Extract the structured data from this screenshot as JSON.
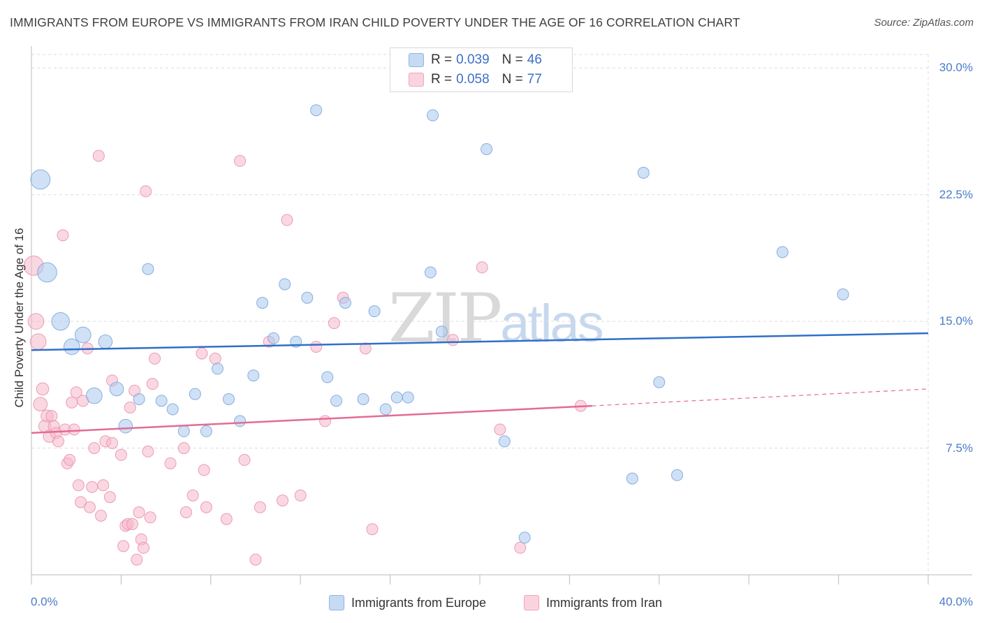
{
  "title": "IMMIGRANTS FROM EUROPE VS IMMIGRANTS FROM IRAN CHILD POVERTY UNDER THE AGE OF 16 CORRELATION CHART",
  "source": "Source: ZipAtlas.com",
  "watermark": {
    "zip": "ZIP",
    "atlas": "atlas"
  },
  "legend_box": {
    "rows": [
      {
        "r_label": "R =",
        "r_value": "0.039",
        "n_label": "N =",
        "n_value": "46",
        "color": "#a9c8ee"
      },
      {
        "r_label": "R =",
        "r_value": "0.058",
        "n_label": "N =",
        "n_value": "77",
        "color": "#f5b8cb"
      }
    ]
  },
  "bottom_legend": {
    "europe": "Immigrants from Europe",
    "iran": "Immigrants from Iran"
  },
  "chart_data": {
    "type": "scatter",
    "title": "IMMIGRANTS FROM EUROPE VS IMMIGRANTS FROM IRAN CHILD POVERTY UNDER THE AGE OF 16 CORRELATION CHART",
    "xlabel": "",
    "ylabel": "Child Poverty Under the Age of 16",
    "xlim": [
      0,
      40
    ],
    "ylim": [
      0,
      30.8
    ],
    "x_tick_labels": [
      "0.0%",
      "40.0%"
    ],
    "y_ticks": [
      7.5,
      15.0,
      22.5,
      30.0
    ],
    "y_tick_labels": [
      "7.5%",
      "15.0%",
      "22.5%",
      "30.0%"
    ],
    "grid": true,
    "colors": {
      "europe": "#a9c8ee",
      "europe_line": "#2f6fc9",
      "iran": "#f5b8cb",
      "iran_line": "#e46b94"
    },
    "series": [
      {
        "name": "Immigrants from Europe",
        "r": 0.039,
        "n": 46,
        "trend": {
          "x0": 0,
          "y0": 13.3,
          "x1": 40,
          "y1": 14.3
        },
        "points": [
          {
            "x": 0.4,
            "y": 23.4,
            "s": 3
          },
          {
            "x": 0.7,
            "y": 17.9,
            "s": 3
          },
          {
            "x": 1.3,
            "y": 15.0,
            "s": 2.5
          },
          {
            "x": 1.8,
            "y": 13.5,
            "s": 2
          },
          {
            "x": 2.3,
            "y": 14.2,
            "s": 2
          },
          {
            "x": 2.8,
            "y": 10.6,
            "s": 2
          },
          {
            "x": 3.3,
            "y": 13.8,
            "s": 1.5
          },
          {
            "x": 3.8,
            "y": 11.0,
            "s": 1.5
          },
          {
            "x": 4.2,
            "y": 8.8,
            "s": 1.5
          },
          {
            "x": 4.8,
            "y": 10.4,
            "s": 1
          },
          {
            "x": 5.2,
            "y": 18.1,
            "s": 1
          },
          {
            "x": 5.8,
            "y": 10.3,
            "s": 1
          },
          {
            "x": 6.3,
            "y": 9.8,
            "s": 1
          },
          {
            "x": 6.8,
            "y": 8.5,
            "s": 1
          },
          {
            "x": 7.3,
            "y": 10.7,
            "s": 1
          },
          {
            "x": 7.8,
            "y": 8.5,
            "s": 1
          },
          {
            "x": 8.3,
            "y": 12.2,
            "s": 1
          },
          {
            "x": 8.8,
            "y": 10.4,
            "s": 1
          },
          {
            "x": 9.3,
            "y": 9.1,
            "s": 1
          },
          {
            "x": 9.9,
            "y": 11.8,
            "s": 1
          },
          {
            "x": 10.3,
            "y": 16.1,
            "s": 1
          },
          {
            "x": 10.8,
            "y": 14.0,
            "s": 1
          },
          {
            "x": 11.3,
            "y": 17.2,
            "s": 1
          },
          {
            "x": 11.8,
            "y": 13.8,
            "s": 1
          },
          {
            "x": 12.3,
            "y": 16.4,
            "s": 1
          },
          {
            "x": 12.7,
            "y": 27.5,
            "s": 1
          },
          {
            "x": 13.2,
            "y": 11.7,
            "s": 1
          },
          {
            "x": 13.6,
            "y": 10.3,
            "s": 1
          },
          {
            "x": 14.0,
            "y": 16.1,
            "s": 1
          },
          {
            "x": 14.8,
            "y": 10.4,
            "s": 1
          },
          {
            "x": 15.3,
            "y": 15.6,
            "s": 1
          },
          {
            "x": 15.8,
            "y": 9.8,
            "s": 1
          },
          {
            "x": 16.3,
            "y": 10.5,
            "s": 1
          },
          {
            "x": 16.8,
            "y": 10.5,
            "s": 1
          },
          {
            "x": 17.8,
            "y": 17.9,
            "s": 1
          },
          {
            "x": 17.9,
            "y": 27.2,
            "s": 1
          },
          {
            "x": 18.3,
            "y": 14.4,
            "s": 1
          },
          {
            "x": 20.3,
            "y": 25.2,
            "s": 1
          },
          {
            "x": 21.1,
            "y": 7.9,
            "s": 1
          },
          {
            "x": 22.0,
            "y": 2.2,
            "s": 1
          },
          {
            "x": 26.8,
            "y": 5.7,
            "s": 1
          },
          {
            "x": 27.3,
            "y": 23.8,
            "s": 1
          },
          {
            "x": 28.0,
            "y": 11.4,
            "s": 1
          },
          {
            "x": 28.8,
            "y": 5.9,
            "s": 1
          },
          {
            "x": 33.5,
            "y": 19.1,
            "s": 1
          },
          {
            "x": 36.2,
            "y": 16.6,
            "s": 1
          }
        ]
      },
      {
        "name": "Immigrants from Iran",
        "r": 0.058,
        "n": 77,
        "trend": {
          "x0": 0,
          "y0": 8.4,
          "x1": 25,
          "y1": 10.0,
          "dashed_to": {
            "x": 40,
            "y": 11.0
          }
        },
        "points": [
          {
            "x": 0.1,
            "y": 18.3,
            "s": 3
          },
          {
            "x": 0.2,
            "y": 15.0,
            "s": 2
          },
          {
            "x": 0.3,
            "y": 13.8,
            "s": 2
          },
          {
            "x": 0.4,
            "y": 10.1,
            "s": 1.5
          },
          {
            "x": 0.5,
            "y": 11.0,
            "s": 1.2
          },
          {
            "x": 0.6,
            "y": 8.8,
            "s": 1.2
          },
          {
            "x": 0.7,
            "y": 9.4,
            "s": 1.2
          },
          {
            "x": 0.8,
            "y": 8.2,
            "s": 1.2
          },
          {
            "x": 0.9,
            "y": 9.4,
            "s": 1
          },
          {
            "x": 1.0,
            "y": 8.8,
            "s": 1
          },
          {
            "x": 1.1,
            "y": 8.4,
            "s": 1
          },
          {
            "x": 1.2,
            "y": 7.9,
            "s": 1
          },
          {
            "x": 1.4,
            "y": 20.1,
            "s": 1
          },
          {
            "x": 1.5,
            "y": 8.6,
            "s": 1
          },
          {
            "x": 1.6,
            "y": 6.6,
            "s": 1
          },
          {
            "x": 1.7,
            "y": 6.8,
            "s": 1
          },
          {
            "x": 1.8,
            "y": 10.2,
            "s": 1
          },
          {
            "x": 1.9,
            "y": 8.6,
            "s": 1
          },
          {
            "x": 2.0,
            "y": 10.8,
            "s": 1
          },
          {
            "x": 2.1,
            "y": 5.3,
            "s": 1
          },
          {
            "x": 2.2,
            "y": 4.3,
            "s": 1
          },
          {
            "x": 2.3,
            "y": 10.3,
            "s": 1
          },
          {
            "x": 2.5,
            "y": 13.4,
            "s": 1
          },
          {
            "x": 2.6,
            "y": 4.0,
            "s": 1
          },
          {
            "x": 2.7,
            "y": 5.2,
            "s": 1
          },
          {
            "x": 2.8,
            "y": 7.5,
            "s": 1
          },
          {
            "x": 3.0,
            "y": 24.8,
            "s": 1
          },
          {
            "x": 3.1,
            "y": 3.5,
            "s": 1
          },
          {
            "x": 3.2,
            "y": 5.3,
            "s": 1
          },
          {
            "x": 3.3,
            "y": 7.9,
            "s": 1
          },
          {
            "x": 3.5,
            "y": 4.6,
            "s": 1
          },
          {
            "x": 3.6,
            "y": 11.5,
            "s": 1
          },
          {
            "x": 3.6,
            "y": 7.8,
            "s": 1
          },
          {
            "x": 4.0,
            "y": 7.1,
            "s": 1
          },
          {
            "x": 4.1,
            "y": 1.7,
            "s": 1
          },
          {
            "x": 4.2,
            "y": 2.9,
            "s": 1
          },
          {
            "x": 4.3,
            "y": 3.0,
            "s": 1
          },
          {
            "x": 4.4,
            "y": 9.9,
            "s": 1
          },
          {
            "x": 4.5,
            "y": 3.0,
            "s": 1
          },
          {
            "x": 4.6,
            "y": 10.9,
            "s": 1
          },
          {
            "x": 4.7,
            "y": 0.9,
            "s": 1
          },
          {
            "x": 4.8,
            "y": 3.7,
            "s": 1
          },
          {
            "x": 4.9,
            "y": 2.1,
            "s": 1
          },
          {
            "x": 5.0,
            "y": 1.6,
            "s": 1
          },
          {
            "x": 5.1,
            "y": 22.7,
            "s": 1
          },
          {
            "x": 5.2,
            "y": 7.3,
            "s": 1
          },
          {
            "x": 5.3,
            "y": 3.4,
            "s": 1
          },
          {
            "x": 5.4,
            "y": 11.3,
            "s": 1
          },
          {
            "x": 5.5,
            "y": 12.8,
            "s": 1
          },
          {
            "x": 6.2,
            "y": 6.6,
            "s": 1
          },
          {
            "x": 6.8,
            "y": 7.5,
            "s": 1
          },
          {
            "x": 6.9,
            "y": 3.7,
            "s": 1
          },
          {
            "x": 7.2,
            "y": 4.7,
            "s": 1
          },
          {
            "x": 7.6,
            "y": 13.1,
            "s": 1
          },
          {
            "x": 7.7,
            "y": 6.2,
            "s": 1
          },
          {
            "x": 7.8,
            "y": 4.0,
            "s": 1
          },
          {
            "x": 8.2,
            "y": 12.8,
            "s": 1
          },
          {
            "x": 8.7,
            "y": 3.3,
            "s": 1
          },
          {
            "x": 9.3,
            "y": 24.5,
            "s": 1
          },
          {
            "x": 9.5,
            "y": 6.8,
            "s": 1
          },
          {
            "x": 10.0,
            "y": 0.9,
            "s": 1
          },
          {
            "x": 10.2,
            "y": 4.0,
            "s": 1
          },
          {
            "x": 10.6,
            "y": 13.8,
            "s": 1
          },
          {
            "x": 11.2,
            "y": 4.4,
            "s": 1
          },
          {
            "x": 11.4,
            "y": 21.0,
            "s": 1
          },
          {
            "x": 12.0,
            "y": 4.7,
            "s": 1
          },
          {
            "x": 12.7,
            "y": 13.5,
            "s": 1
          },
          {
            "x": 13.1,
            "y": 9.1,
            "s": 1
          },
          {
            "x": 13.5,
            "y": 14.9,
            "s": 1
          },
          {
            "x": 13.9,
            "y": 16.4,
            "s": 1
          },
          {
            "x": 14.9,
            "y": 13.4,
            "s": 1
          },
          {
            "x": 15.2,
            "y": 2.7,
            "s": 1
          },
          {
            "x": 18.8,
            "y": 13.9,
            "s": 1
          },
          {
            "x": 20.1,
            "y": 18.2,
            "s": 1
          },
          {
            "x": 20.9,
            "y": 8.6,
            "s": 1
          },
          {
            "x": 21.8,
            "y": 1.6,
            "s": 1
          },
          {
            "x": 24.5,
            "y": 10.0,
            "s": 1
          }
        ]
      }
    ]
  }
}
